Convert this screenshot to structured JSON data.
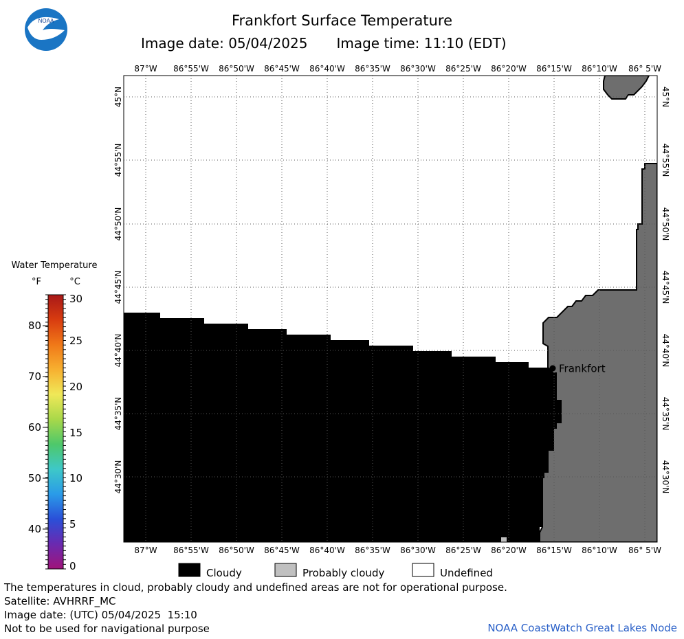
{
  "header": {
    "title": "Frankfort Surface Temperature",
    "image_date_label": "Image date: 05/04/2025",
    "image_time_label": "Image time: 11:10 (EDT)"
  },
  "logo": {
    "text": "NOAA",
    "colors": {
      "outer": "#1a75c4",
      "bird": "#ffffff",
      "inner": "#0b3d91"
    }
  },
  "map": {
    "lon_ticks_top": [
      "87°W",
      "86°55'W",
      "86°50'W",
      "86°45'W",
      "86°40'W",
      "86°35'W",
      "86°30'W",
      "86°25'W",
      "86°20'W",
      "86°15'W",
      "86°10'W",
      "86° 5'W"
    ],
    "lon_ticks_bottom": [
      "87°W",
      "86°55'W",
      "86°50'W",
      "86°45'W",
      "86°40'W",
      "86°35'W",
      "86°30'W",
      "86°25'W",
      "86°20'W",
      "86°15'W",
      "86°10'W",
      "86° 5'W"
    ],
    "lat_ticks": [
      "45°N",
      "44°55'N",
      "44°50'N",
      "44°45'N",
      "44°40'N",
      "44°35'N",
      "44°30'N"
    ],
    "city_label": "Frankfort",
    "colors": {
      "cloudy": "#000000",
      "land": "#6e6e6e",
      "undefined": "#ffffff",
      "grid": "#555555"
    }
  },
  "colorbar": {
    "title": "Water Temperature",
    "unit_f": "°F",
    "unit_c": "°C",
    "f_labels": [
      "80",
      "70",
      "60",
      "50",
      "40"
    ],
    "c_labels": [
      "30",
      "25",
      "20",
      "15",
      "10",
      "5",
      "0"
    ],
    "gradient": [
      "#a0147a",
      "#6a2ab0",
      "#2a4fd8",
      "#2a9be8",
      "#3ec8c8",
      "#4ec86a",
      "#a8d84a",
      "#f0e858",
      "#f7b030",
      "#f07818",
      "#d83c10",
      "#a81818"
    ]
  },
  "legend": {
    "cloudy": "Cloudy",
    "probably_cloudy": "Probably cloudy",
    "undefined": "Undefined",
    "colors": {
      "cloudy": "#000000",
      "probably_cloudy": "#c0c0c0",
      "undefined": "#ffffff"
    }
  },
  "footer": {
    "disclaimer": "The temperatures in cloud, probably cloudy and undefined areas are not for operational purpose.",
    "satellite": "Satellite: AVHRRF_MC",
    "image_date_utc": "Image date: (UTC) 05/04/2025  15:10",
    "navigation": "Not to be used for navigational purpose",
    "credit": "NOAA CoastWatch Great Lakes Node"
  }
}
